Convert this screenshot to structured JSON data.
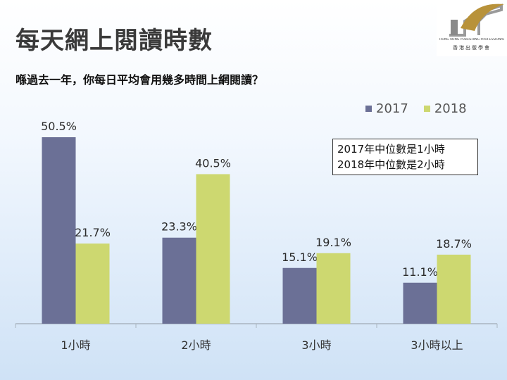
{
  "slide_title": "每天網上閱讀時數",
  "question": "喺過去一年，你每日平均會用幾多時間上網閱讀？",
  "logo": {
    "name": "香港出版學會",
    "caption_en": "HONG KONG PUBLISHING PROFESSIONALS SOCIETY"
  },
  "note": {
    "line1": "2017年中位數是1小時",
    "line2": "2018年中位數是2小時"
  },
  "chart_data": {
    "type": "bar",
    "categories": [
      "1小時",
      "2小時",
      "3小時",
      "3小時以上"
    ],
    "series": [
      {
        "name": "2017",
        "color": "#6b7096",
        "values": [
          50.5,
          23.3,
          15.1,
          11.1
        ],
        "labels": [
          "50.5%",
          "23.3%",
          "15.1%",
          "11.1%"
        ]
      },
      {
        "name": "2018",
        "color": "#cdd870",
        "values": [
          21.7,
          40.5,
          19.1,
          18.7
        ],
        "labels": [
          "21.7%",
          "40.5%",
          "19.1%",
          "18.7%"
        ]
      }
    ],
    "ylim": [
      0,
      50.5
    ],
    "legend": "top-right",
    "grid": false
  }
}
